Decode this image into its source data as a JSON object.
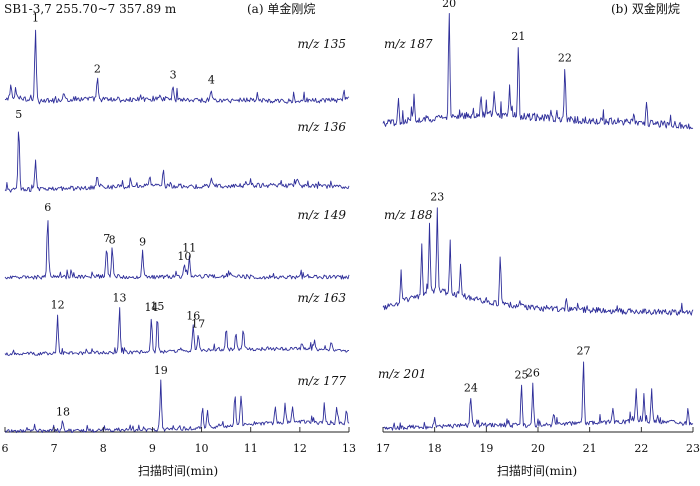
{
  "chart_data": [
    {
      "type": "line",
      "title": "(a) 单金刚烷",
      "subtitle": "SB1-3,7 255.70~7 357.89 m",
      "xlabel": "扫描时间(min)",
      "xlim": [
        6,
        13
      ],
      "xticks": [
        "6",
        "7",
        "8",
        "9",
        "10",
        "11",
        "12",
        "13"
      ],
      "grid": false,
      "series": [
        {
          "name": "m/z 135",
          "baseline_points": [
            [
              6.0,
              0.08
            ],
            [
              6.3,
              0.12
            ],
            [
              6.6,
              0.06
            ],
            [
              7.0,
              0.07
            ],
            [
              7.5,
              0.1
            ],
            [
              8.0,
              0.09
            ],
            [
              8.5,
              0.08
            ],
            [
              9.0,
              0.1
            ],
            [
              9.5,
              0.09
            ],
            [
              10.0,
              0.08
            ],
            [
              10.5,
              0.07
            ],
            [
              11.0,
              0.09
            ],
            [
              11.5,
              0.06
            ],
            [
              12.0,
              0.08
            ],
            [
              12.5,
              0.07
            ],
            [
              13.0,
              0.09
            ]
          ],
          "peaks": [
            {
              "label": "1",
              "x": 6.62,
              "y": 1.0
            },
            {
              "label": "",
              "x": 6.12,
              "y": 0.18
            },
            {
              "label": "",
              "x": 6.22,
              "y": 0.12
            },
            {
              "label": "2",
              "x": 7.88,
              "y": 0.28
            },
            {
              "label": "",
              "x": 7.2,
              "y": 0.1
            },
            {
              "label": "3",
              "x": 9.42,
              "y": 0.2
            },
            {
              "label": "",
              "x": 9.15,
              "y": 0.08
            },
            {
              "label": "4",
              "x": 10.2,
              "y": 0.15
            },
            {
              "label": "",
              "x": 12.9,
              "y": 0.1
            }
          ]
        },
        {
          "name": "m/z 136",
          "baseline_points": [
            [
              6.0,
              0.1
            ],
            [
              7.0,
              0.12
            ],
            [
              8.0,
              0.15
            ],
            [
              9.0,
              0.17
            ],
            [
              10.0,
              0.16
            ],
            [
              11.0,
              0.18
            ],
            [
              12.0,
              0.17
            ],
            [
              13.0,
              0.15
            ]
          ],
          "peaks": [
            {
              "label": "5",
              "x": 6.28,
              "y": 1.0
            },
            {
              "label": "",
              "x": 6.62,
              "y": 0.48
            },
            {
              "label": "",
              "x": 7.88,
              "y": 0.18
            },
            {
              "label": "",
              "x": 9.22,
              "y": 0.25
            },
            {
              "label": "",
              "x": 8.95,
              "y": 0.15
            },
            {
              "label": "",
              "x": 10.2,
              "y": 0.15
            },
            {
              "label": "",
              "x": 11.95,
              "y": 0.13
            }
          ]
        },
        {
          "name": "m/z 149",
          "baseline_points": [
            [
              6.0,
              0.04
            ],
            [
              7.0,
              0.05
            ],
            [
              8.0,
              0.06
            ],
            [
              9.0,
              0.05
            ],
            [
              10.0,
              0.06
            ],
            [
              11.0,
              0.05
            ],
            [
              12.0,
              0.05
            ],
            [
              13.0,
              0.05
            ]
          ],
          "peaks": [
            {
              "label": "6",
              "x": 6.87,
              "y": 1.0
            },
            {
              "label": "",
              "x": 7.35,
              "y": 0.1
            },
            {
              "label": "7",
              "x": 8.07,
              "y": 0.47
            },
            {
              "label": "8",
              "x": 8.18,
              "y": 0.45
            },
            {
              "label": "9",
              "x": 8.8,
              "y": 0.42
            },
            {
              "label": "10",
              "x": 9.65,
              "y": 0.18
            },
            {
              "label": "11",
              "x": 9.75,
              "y": 0.32
            }
          ]
        },
        {
          "name": "m/z 163",
          "baseline_points": [
            [
              6.0,
              0.02
            ],
            [
              7.0,
              0.03
            ],
            [
              8.0,
              0.05
            ],
            [
              9.0,
              0.06
            ],
            [
              10.0,
              0.1
            ],
            [
              11.0,
              0.12
            ],
            [
              12.0,
              0.12
            ],
            [
              13.0,
              0.08
            ]
          ],
          "peaks": [
            {
              "label": "12",
              "x": 7.07,
              "y": 0.78
            },
            {
              "label": "13",
              "x": 8.33,
              "y": 0.9
            },
            {
              "label": "14",
              "x": 8.98,
              "y": 0.7
            },
            {
              "label": "15",
              "x": 9.1,
              "y": 0.72
            },
            {
              "label": "16",
              "x": 9.83,
              "y": 0.5
            },
            {
              "label": "17",
              "x": 9.93,
              "y": 0.33
            },
            {
              "label": "",
              "x": 10.5,
              "y": 0.38
            },
            {
              "label": "",
              "x": 10.7,
              "y": 0.33
            },
            {
              "label": "",
              "x": 10.85,
              "y": 0.38
            },
            {
              "label": "",
              "x": 12.3,
              "y": 0.18
            },
            {
              "label": "",
              "x": 12.65,
              "y": 0.16
            }
          ]
        },
        {
          "name": "m/z 177",
          "baseline_points": [
            [
              6.0,
              0.02
            ],
            [
              7.0,
              0.02
            ],
            [
              8.0,
              0.03
            ],
            [
              9.0,
              0.04
            ],
            [
              10.0,
              0.08
            ],
            [
              11.0,
              0.15
            ],
            [
              12.0,
              0.2
            ],
            [
              13.0,
              0.15
            ]
          ],
          "peaks": [
            {
              "label": "18",
              "x": 7.18,
              "y": 0.18
            },
            {
              "label": "19",
              "x": 9.17,
              "y": 0.95
            },
            {
              "label": "",
              "x": 10.02,
              "y": 0.38
            },
            {
              "label": "",
              "x": 10.12,
              "y": 0.3
            },
            {
              "label": "",
              "x": 10.68,
              "y": 0.6
            },
            {
              "label": "",
              "x": 10.8,
              "y": 0.55
            },
            {
              "label": "",
              "x": 11.5,
              "y": 0.3
            },
            {
              "label": "",
              "x": 11.7,
              "y": 0.35
            },
            {
              "label": "",
              "x": 11.85,
              "y": 0.28
            },
            {
              "label": "",
              "x": 12.5,
              "y": 0.3
            },
            {
              "label": "",
              "x": 12.75,
              "y": 0.32
            },
            {
              "label": "",
              "x": 12.95,
              "y": 0.25
            }
          ]
        }
      ]
    },
    {
      "type": "line",
      "title": "(b) 双金刚烷",
      "xlabel": "扫描时间(min)",
      "xlim": [
        17,
        23
      ],
      "xticks": [
        "17",
        "18",
        "19",
        "20",
        "21",
        "22",
        "23"
      ],
      "grid": false,
      "series": [
        {
          "name": "m/z 187",
          "baseline_points": [
            [
              17.0,
              0.1
            ],
            [
              17.5,
              0.14
            ],
            [
              18.0,
              0.16
            ],
            [
              18.5,
              0.18
            ],
            [
              19.0,
              0.2
            ],
            [
              19.5,
              0.18
            ],
            [
              20.0,
              0.17
            ],
            [
              20.5,
              0.15
            ],
            [
              21.0,
              0.14
            ],
            [
              21.5,
              0.13
            ],
            [
              22.0,
              0.12
            ],
            [
              22.5,
              0.1
            ],
            [
              23.0,
              0.09
            ]
          ],
          "peaks": [
            {
              "label": "20",
              "x": 18.28,
              "y": 1.0
            },
            {
              "label": "",
              "x": 17.3,
              "y": 0.2
            },
            {
              "label": "",
              "x": 17.6,
              "y": 0.22
            },
            {
              "label": "",
              "x": 18.9,
              "y": 0.2
            },
            {
              "label": "",
              "x": 19.15,
              "y": 0.25
            },
            {
              "label": "21",
              "x": 19.62,
              "y": 0.68
            },
            {
              "label": "",
              "x": 19.45,
              "y": 0.3
            },
            {
              "label": "22",
              "x": 20.52,
              "y": 0.5
            },
            {
              "label": "",
              "x": 22.1,
              "y": 0.18
            }
          ]
        },
        {
          "name": "m/z 188",
          "baseline_points": [
            [
              17.0,
              0.1
            ],
            [
              17.5,
              0.2
            ],
            [
              18.0,
              0.3
            ],
            [
              18.5,
              0.25
            ],
            [
              19.0,
              0.18
            ],
            [
              19.5,
              0.13
            ],
            [
              20.0,
              0.1
            ],
            [
              21.0,
              0.08
            ],
            [
              22.0,
              0.06
            ],
            [
              23.0,
              0.05
            ]
          ],
          "peaks": [
            {
              "label": "",
              "x": 17.35,
              "y": 0.35
            },
            {
              "label": "",
              "x": 17.75,
              "y": 0.55
            },
            {
              "label": "",
              "x": 17.9,
              "y": 0.82
            },
            {
              "label": "23",
              "x": 18.05,
              "y": 0.96
            },
            {
              "label": "",
              "x": 18.3,
              "y": 0.58
            },
            {
              "label": "",
              "x": 18.5,
              "y": 0.3
            },
            {
              "label": "",
              "x": 19.27,
              "y": 0.55
            },
            {
              "label": "",
              "x": 20.55,
              "y": 0.15
            }
          ]
        },
        {
          "name": "m/z 201",
          "baseline_points": [
            [
              17.0,
              0.05
            ],
            [
              17.5,
              0.07
            ],
            [
              18.0,
              0.08
            ],
            [
              18.5,
              0.1
            ],
            [
              19.0,
              0.11
            ],
            [
              19.5,
              0.1
            ],
            [
              20.0,
              0.1
            ],
            [
              20.5,
              0.12
            ],
            [
              21.0,
              0.14
            ],
            [
              21.5,
              0.15
            ],
            [
              22.0,
              0.17
            ],
            [
              22.5,
              0.15
            ],
            [
              23.0,
              0.12
            ]
          ],
          "peaks": [
            {
              "label": "24",
              "x": 18.7,
              "y": 0.42
            },
            {
              "label": "",
              "x": 18.0,
              "y": 0.12
            },
            {
              "label": "25",
              "x": 19.68,
              "y": 0.62
            },
            {
              "label": "26",
              "x": 19.9,
              "y": 0.65
            },
            {
              "label": "",
              "x": 20.3,
              "y": 0.18
            },
            {
              "label": "27",
              "x": 20.88,
              "y": 0.95
            },
            {
              "label": "",
              "x": 21.45,
              "y": 0.22
            },
            {
              "label": "",
              "x": 21.9,
              "y": 0.48
            },
            {
              "label": "",
              "x": 22.05,
              "y": 0.4
            },
            {
              "label": "",
              "x": 22.2,
              "y": 0.52
            },
            {
              "label": "",
              "x": 22.9,
              "y": 0.25
            }
          ]
        }
      ]
    }
  ]
}
